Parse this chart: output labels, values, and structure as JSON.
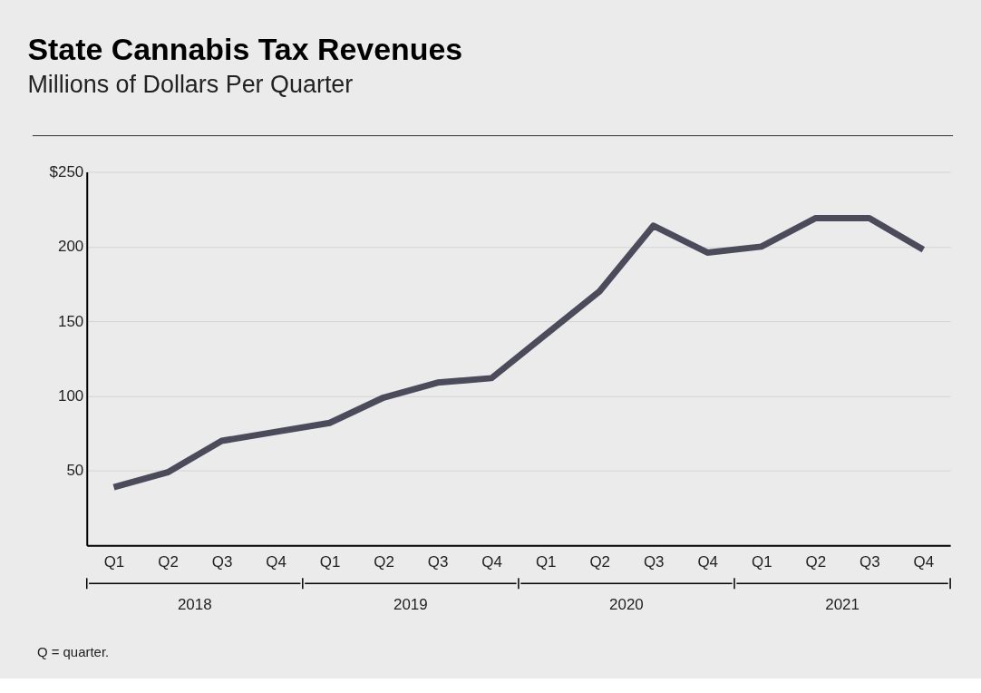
{
  "chart_data": {
    "type": "line",
    "title": "State Cannabis Tax Revenues",
    "subtitle": "Millions of Dollars Per Quarter",
    "categories": [
      "Q1",
      "Q2",
      "Q3",
      "Q4",
      "Q1",
      "Q2",
      "Q3",
      "Q4",
      "Q1",
      "Q2",
      "Q3",
      "Q4",
      "Q1",
      "Q2",
      "Q3",
      "Q4"
    ],
    "series": [
      {
        "color": "#4b4b5c",
        "values": [
          39,
          49,
          70,
          76,
          82,
          99,
          109,
          112,
          141,
          170,
          214,
          196,
          200,
          219,
          219,
          198
        ]
      }
    ],
    "ylim": [
      0,
      250
    ],
    "yticks": [
      50,
      100,
      150,
      200,
      {
        "value": 250,
        "label": "$250"
      }
    ],
    "grid": "y",
    "marker": "none",
    "line_style": "solid",
    "annotations": [
      "2018",
      "2019",
      "2020",
      "2021",
      "Q = quarter."
    ]
  }
}
